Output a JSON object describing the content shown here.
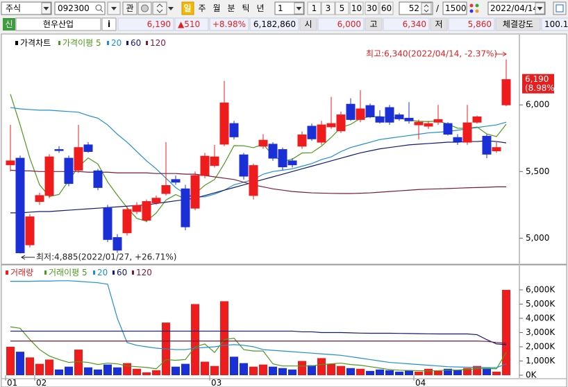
{
  "toolbar": {
    "market": "주식",
    "code": "092300",
    "search_btn": "관",
    "periods": [
      "일",
      "주",
      "월",
      "분",
      "틱",
      "년"
    ],
    "interval": "1",
    "intervals": [
      "1",
      "3",
      "5",
      "10",
      "30",
      "60"
    ],
    "count": "52",
    "separator": "/",
    "total": "1500",
    "date": "2022/04/14"
  },
  "quote": {
    "badge": "신",
    "name": "현우산업",
    "info": "i",
    "price": "6,190",
    "change": "▲510",
    "rate": "+8.98%",
    "volume": "6,182,860",
    "open_label": "시",
    "open": "6,000",
    "high_label": "고",
    "high": "6,340",
    "low_label": "저",
    "low": "5,860",
    "strength_label": "체결강도",
    "strength": "100.1"
  },
  "chart_data": [
    {
      "type": "candlestick",
      "title": "가격차트",
      "up_color": "#ee1c1c",
      "down_color": "#1a2fd6",
      "open": [
        5550,
        5600,
        4950,
        5275,
        5320,
        5665,
        5600,
        5510,
        5700,
        5505,
        5225,
        5005,
        5040,
        5200,
        5135,
        5265,
        5335,
        5440,
        5370,
        5225,
        5470,
        5545,
        5705,
        5860,
        5625,
        5320,
        5690,
        5705,
        5665,
        5580,
        5690,
        5840,
        5720,
        5835,
        5805,
        6005,
        5890,
        5995,
        5910,
        5980,
        5925,
        5900,
        5850,
        5840,
        5870,
        5860,
        5755,
        5720,
        5870,
        5765,
        5655,
        6000
      ],
      "high": [
        5850,
        5620,
        5180,
        5340,
        5630,
        5690,
        5620,
        5850,
        5720,
        5520,
        5250,
        5030,
        5240,
        5270,
        5290,
        5320,
        5720,
        5470,
        5400,
        5500,
        5640,
        5700,
        6180,
        5880,
        5640,
        5560,
        5780,
        5720,
        5680,
        5600,
        5800,
        5860,
        5880,
        6060,
        5950,
        6050,
        6110,
        6010,
        5960,
        6000,
        5940,
        6020,
        5890,
        5880,
        6000,
        5870,
        5780,
        6000,
        5920,
        5780,
        5720,
        6340
      ],
      "low": [
        5500,
        4885,
        4930,
        5250,
        5300,
        5640,
        5390,
        5490,
        5640,
        5360,
        4970,
        4890,
        5020,
        5180,
        5120,
        5250,
        5320,
        5400,
        5060,
        5210,
        5450,
        5530,
        5690,
        5740,
        5440,
        5290,
        5670,
        5580,
        5510,
        5530,
        5670,
        5730,
        5700,
        5820,
        5790,
        5880,
        5870,
        5900,
        5860,
        5850,
        5880,
        5860,
        5740,
        5820,
        5850,
        5770,
        5700,
        5700,
        5860,
        5600,
        5640,
        5990
      ],
      "close": [
        5580,
        4890,
        5160,
        5320,
        5610,
        5660,
        5410,
        5680,
        5650,
        5380,
        4990,
        4910,
        5215,
        5245,
        5275,
        5300,
        5395,
        5420,
        5085,
        5470,
        5615,
        5610,
        6015,
        5760,
        5465,
        5545,
        5735,
        5600,
        5535,
        5550,
        5775,
        5745,
        5850,
        5860,
        5925,
        5890,
        5970,
        5910,
        5870,
        5870,
        5895,
        5880,
        5870,
        5860,
        5890,
        5780,
        5725,
        5865,
        5910,
        5630,
        5680,
        6190
      ],
      "series": [
        {
          "name": "가격이평 5",
          "color": "#4c9a1c",
          "values": [
            6080,
            5850,
            5600,
            5400,
            5312,
            5328,
            5432,
            5536,
            5602,
            5556,
            5422,
            5322,
            5229,
            5148,
            5127,
            5189,
            5286,
            5327,
            5295,
            5334,
            5397,
            5440,
            5559,
            5694,
            5693,
            5679,
            5704,
            5621,
            5576,
            5593,
            5639,
            5641,
            5691,
            5756,
            5831,
            5854,
            5899,
            5911,
            5913,
            5902,
            5903,
            5885,
            5877,
            5875,
            5879,
            5856,
            5825,
            5824,
            5834,
            5782,
            5762,
            5855
          ]
        },
        {
          "name": "20",
          "color": "#1f8fd0",
          "values": [
            5980,
            5970,
            5965,
            5960,
            5960,
            5955,
            5950,
            5945,
            5920,
            5900,
            5850,
            5780,
            5720,
            5650,
            5580,
            5520,
            5450,
            5380,
            5330,
            5310,
            5310,
            5330,
            5360,
            5400,
            5420,
            5440,
            5480,
            5500,
            5510,
            5520,
            5540,
            5560,
            5590,
            5610,
            5650,
            5680,
            5700,
            5720,
            5740,
            5750,
            5760,
            5770,
            5780,
            5790,
            5795,
            5800,
            5810,
            5820,
            5830,
            5840,
            5850,
            5870
          ]
        },
        {
          "name": "60",
          "color": "#10187a",
          "values": [
            5190,
            5190,
            5195,
            5200,
            5200,
            5205,
            5210,
            5215,
            5220,
            5225,
            5230,
            5235,
            5240,
            5245,
            5250,
            5260,
            5270,
            5280,
            5290,
            5300,
            5320,
            5340,
            5360,
            5380,
            5400,
            5420,
            5440,
            5460,
            5480,
            5500,
            5520,
            5540,
            5560,
            5580,
            5600,
            5620,
            5640,
            5655,
            5670,
            5680,
            5690,
            5700,
            5705,
            5710,
            5715,
            5720,
            5720,
            5725,
            5725,
            5730,
            5725,
            5715
          ]
        },
        {
          "name": "120",
          "color": "#7a1a3a",
          "values": [
            5510,
            5505,
            5505,
            5500,
            5500,
            5500,
            5500,
            5500,
            5495,
            5495,
            5495,
            5490,
            5490,
            5490,
            5490,
            5485,
            5485,
            5485,
            5480,
            5480,
            5470,
            5460,
            5450,
            5440,
            5420,
            5400,
            5385,
            5370,
            5360,
            5350,
            5345,
            5340,
            5338,
            5336,
            5335,
            5335,
            5337,
            5340,
            5345,
            5350,
            5355,
            5360,
            5365,
            5368,
            5370,
            5372,
            5375,
            5378,
            5380,
            5382,
            5385,
            5385
          ]
        }
      ],
      "ylim": [
        4820,
        6485
      ],
      "yticks": [
        {
          "value": 6000,
          "label": "6,000"
        },
        {
          "value": 5500,
          "label": "5,500"
        },
        {
          "value": 5000,
          "label": "5,000"
        }
      ],
      "annotations": [
        "최고:6,340(2022/04/14, -2.37%)",
        "최저:4,885(2022/01/27, +26.71%)"
      ],
      "last_label": "6,190",
      "last_rate_label": "(8.98%)"
    },
    {
      "type": "bar",
      "title": "거래량",
      "categories": [
        "01",
        null,
        null,
        "02",
        null,
        null,
        null,
        null,
        null,
        null,
        null,
        null,
        null,
        null,
        null,
        null,
        null,
        null,
        null,
        null,
        null,
        "03",
        null,
        null,
        null,
        null,
        null,
        null,
        null,
        null,
        null,
        null,
        null,
        null,
        null,
        null,
        null,
        null,
        null,
        null,
        null,
        null,
        "04",
        null,
        null,
        null,
        null,
        null,
        null,
        null,
        null,
        null
      ],
      "values": [
        2000,
        1650,
        1250,
        800,
        1100,
        400,
        600,
        1800,
        550,
        400,
        750,
        550,
        850,
        450,
        200,
        350,
        3700,
        600,
        800,
        5000,
        950,
        650,
        5200,
        1300,
        850,
        600,
        750,
        600,
        500,
        400,
        1000,
        700,
        1200,
        800,
        650,
        500,
        450,
        300,
        400,
        350,
        250,
        350,
        250,
        450,
        300,
        450,
        350,
        500,
        650,
        500,
        250,
        6000
      ],
      "series": [
        {
          "name": "거래이평 5",
          "color": "#4c9a1c",
          "values": [
            3400,
            3300,
            2500,
            1800,
            1350,
            1100,
            900,
            950,
            900,
            750,
            850,
            800,
            650,
            600,
            550,
            450,
            1100,
            1050,
            1100,
            2000,
            2200,
            1600,
            2500,
            2600,
            1800,
            1700,
            1700,
            800,
            650,
            650,
            650,
            650,
            750,
            800,
            850,
            750,
            700,
            600,
            500,
            400,
            350,
            330,
            320,
            300,
            320,
            360,
            360,
            410,
            450,
            460,
            450,
            1600
          ]
        },
        {
          "name": "20",
          "color": "#1f8fd0",
          "values": [
            6600,
            6600,
            6600,
            6620,
            6620,
            6640,
            6640,
            6600,
            6550,
            6500,
            6400,
            4000,
            2300,
            2100,
            2000,
            1900,
            1850,
            1800,
            1800,
            1900,
            1950,
            2000,
            2100,
            2150,
            2100,
            2000,
            1800,
            1750,
            1700,
            1650,
            1600,
            1550,
            1500,
            1450,
            1400,
            1300,
            1200,
            1100,
            1000,
            900,
            850,
            800,
            750,
            700,
            650,
            600,
            580,
            560,
            550,
            540,
            530,
            800
          ]
        },
        {
          "name": "60",
          "color": "#10187a",
          "values": [
            3100,
            3100,
            3100,
            3100,
            3100,
            3100,
            3100,
            3100,
            3100,
            3100,
            3100,
            3100,
            3100,
            3100,
            3100,
            3100,
            3100,
            3100,
            3100,
            3100,
            3100,
            3100,
            3100,
            3100,
            3100,
            3100,
            3100,
            3100,
            3100,
            3100,
            3050,
            3050,
            3000,
            3000,
            3000,
            2980,
            2960,
            2950,
            2950,
            2950,
            2940,
            2930,
            2920,
            2910,
            2900,
            2900,
            2900,
            2900,
            2850,
            2500,
            2200,
            2150
          ]
        },
        {
          "name": "120",
          "color": "#7a1a3a",
          "values": [
            2400,
            2400,
            2400,
            2400,
            2400,
            2400,
            2400,
            2400,
            2400,
            2400,
            2400,
            2400,
            2400,
            2400,
            2400,
            2400,
            2400,
            2400,
            2400,
            2400,
            2400,
            2400,
            2400,
            2400,
            2400,
            2400,
            2400,
            2400,
            2400,
            2400,
            2400,
            2400,
            2400,
            2400,
            2400,
            2400,
            2400,
            2400,
            2400,
            2400,
            2400,
            2400,
            2400,
            2400,
            2400,
            2400,
            2400,
            2400,
            2400,
            2380,
            2300,
            2250
          ]
        }
      ],
      "ylim": [
        0,
        7460
      ],
      "yticks": [
        {
          "value": 6000,
          "label": "6,000K"
        },
        {
          "value": 5000,
          "label": "5,000K"
        },
        {
          "value": 4000,
          "label": "4,000K"
        },
        {
          "value": 3000,
          "label": "3,000K"
        },
        {
          "value": 2000,
          "label": "2,000K"
        },
        {
          "value": 1000,
          "label": "1,000K"
        },
        {
          "value": 0,
          "label": "0K"
        }
      ]
    }
  ]
}
